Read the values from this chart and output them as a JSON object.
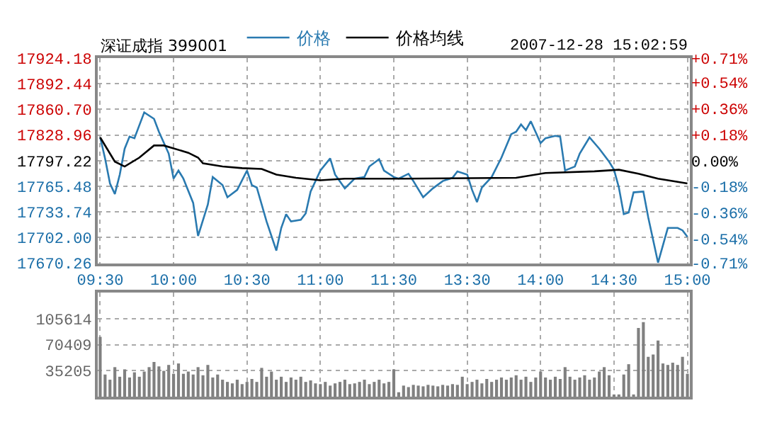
{
  "chart_data": [
    {
      "type": "line",
      "title": "深证成指 399001",
      "annotations": [
        "2007-12-28 15:02:59"
      ],
      "categories": [
        "09:30",
        null,
        null,
        null,
        null,
        null,
        null,
        null,
        null,
        null,
        null,
        null,
        null,
        null,
        null,
        "10:00",
        null,
        null,
        null,
        null,
        null,
        null,
        null,
        null,
        null,
        null,
        null,
        null,
        null,
        null,
        "10:30",
        null,
        null,
        null,
        null,
        null,
        null,
        null,
        null,
        null,
        null,
        null,
        null,
        null,
        null,
        "11:00",
        null,
        null,
        null,
        null,
        null,
        null,
        null,
        null,
        null,
        null,
        null,
        null,
        null,
        null,
        "11:30",
        null,
        null,
        null,
        null,
        null,
        null,
        null,
        null,
        null,
        null,
        null,
        null,
        null,
        null,
        "13:30",
        null,
        null,
        null,
        null,
        null,
        null,
        null,
        null,
        null,
        null,
        null,
        null,
        null,
        null,
        "14:00",
        null,
        null,
        null,
        null,
        null,
        null,
        null,
        null,
        null,
        null,
        null,
        null,
        null,
        null,
        "14:30",
        null,
        null,
        null,
        null,
        null,
        null,
        null,
        null,
        null,
        null,
        null,
        null,
        null,
        null,
        "15:00"
      ],
      "ylim": [
        17670.26,
        17924.18
      ],
      "yticks": [
        {
          "value": 17670.26,
          "label": "17670.26"
        },
        {
          "value": 17702,
          "label": "17702.00"
        },
        {
          "value": 17733.74,
          "label": "17733.74"
        },
        {
          "value": 17765.48,
          "label": "17765.48"
        },
        {
          "value": 17797.22,
          "label": "17797.22"
        },
        {
          "value": 17828.96,
          "label": "17828.96"
        },
        {
          "value": 17860.7,
          "label": "17860.70"
        },
        {
          "value": 17892.44,
          "label": "17892.44"
        },
        {
          "value": 17924.18,
          "label": "17924.18"
        }
      ],
      "y2lim": [
        -0.71,
        0.71
      ],
      "y2ticks": [
        {
          "value": -0.71,
          "label": "-0.71%"
        },
        {
          "value": -0.54,
          "label": "-0.54%"
        },
        {
          "value": -0.36,
          "label": "-0.36%"
        },
        {
          "value": -0.18,
          "label": "-0.18%"
        },
        {
          "value": 0,
          "label": "0.00%"
        },
        {
          "value": 0.18,
          "label": "+0.18%"
        },
        {
          "value": 0.36,
          "label": "+0.36%"
        },
        {
          "value": 0.54,
          "label": "+0.54%"
        },
        {
          "value": 0.71,
          "label": "+0.71%"
        }
      ],
      "grid": true,
      "legend": "top",
      "marker": "none",
      "line_style": "solid",
      "series": [
        {
          "name": "价格",
          "color": "#2a7ab0",
          "values": [
            17826,
            17800,
            17769,
            17756,
            17780,
            17812,
            17827,
            17825,
            17841,
            17857,
            null,
            17849,
            17833,
            null,
            17806,
            17775,
            17785,
            17775,
            null,
            17745,
            17704,
            null,
            17743,
            17777,
            null,
            17767,
            17752,
            null,
            17761,
            null,
            17785,
            17767,
            17764,
            null,
            17722,
            null,
            17686,
            17714,
            17731,
            17722,
            null,
            17724,
            17732,
            17759,
            null,
            17785,
            null,
            17800,
            17780,
            null,
            17763,
            null,
            17775,
            null,
            17777,
            17790,
            null,
            17799,
            17785,
            null,
            17777,
            17775,
            null,
            17781,
            17772,
            null,
            17752,
            null,
            17763,
            null,
            17772,
            null,
            17776,
            17784,
            null,
            17780,
            17761,
            17746,
            17764,
            null,
            17777,
            null,
            17801,
            null,
            17830,
            17833,
            17842,
            17835,
            17846,
            null,
            17819,
            17825,
            null,
            17828,
            17827,
            17785,
            null,
            17790,
            17806,
            null,
            17826,
            null,
            17812,
            null,
            17796,
            17786,
            17764,
            17731,
            17733,
            17758,
            null,
            17759,
            17727,
            null,
            17671,
            null,
            17714,
            null,
            17714,
            17711,
            17703
          ]
        },
        {
          "name": "价格均线",
          "color": "#000000",
          "values": [
            17826,
            null,
            null,
            17796,
            null,
            17790,
            null,
            null,
            17801,
            null,
            null,
            17816,
            null,
            17816,
            null,
            null,
            null,
            null,
            17807,
            null,
            17801,
            17794,
            null,
            null,
            null,
            17790,
            null,
            null,
            null,
            17788,
            null,
            null,
            null,
            17787,
            null,
            null,
            17780,
            null,
            null,
            null,
            17776,
            null,
            null,
            null,
            null,
            17773,
            null,
            null,
            null,
            null,
            17775,
            null,
            null,
            null,
            null,
            null,
            null,
            null,
            null,
            null,
            null,
            null,
            17775,
            null,
            null,
            null,
            null,
            null,
            null,
            null,
            null,
            null,
            null,
            null,
            null,
            null,
            null,
            null,
            null,
            null,
            null,
            null,
            null,
            null,
            null,
            17776,
            null,
            null,
            null,
            null,
            null,
            17782,
            null,
            null,
            null,
            null,
            null,
            null,
            null,
            null,
            null,
            17784,
            null,
            null,
            null,
            null,
            17786,
            null,
            null,
            null,
            17781,
            null,
            null,
            null,
            17775,
            null,
            null,
            null,
            null,
            null,
            17769
          ]
        }
      ]
    },
    {
      "type": "bar",
      "grid": true,
      "categories": [
        null,
        null,
        null,
        null,
        null,
        null,
        null,
        null,
        null,
        null,
        null,
        null,
        null,
        null,
        null,
        null,
        null,
        null,
        null,
        null,
        null,
        null,
        null,
        null,
        null,
        null,
        null,
        null,
        null,
        null,
        null,
        null,
        null,
        null,
        null,
        null,
        null,
        null,
        null,
        null,
        null,
        null,
        null,
        null,
        null,
        null,
        null,
        null,
        null,
        null,
        null,
        null,
        null,
        null,
        null,
        null,
        null,
        null,
        null,
        null,
        null,
        null,
        null,
        null,
        null,
        null,
        null,
        null,
        null,
        null,
        null,
        null,
        null,
        null,
        null,
        null,
        null,
        null,
        null,
        null,
        null,
        null,
        null,
        null,
        null,
        null,
        null,
        null,
        null,
        null,
        null,
        null,
        null,
        null,
        null,
        null,
        null,
        null,
        null,
        null,
        null,
        null,
        null,
        null,
        null,
        null,
        null,
        null,
        null,
        null,
        null,
        null,
        null,
        null,
        null,
        null,
        null,
        null,
        null,
        null,
        null
      ],
      "ylim": [
        0,
        140818
      ],
      "yticks": [
        35205,
        70409,
        105614
      ],
      "series": [
        {
          "color": "#808080",
          "values": [
            81000,
            30000,
            23000,
            40000,
            27000,
            37000,
            26000,
            33000,
            27000,
            34000,
            40000,
            47000,
            41000,
            35000,
            43000,
            31000,
            45000,
            31000,
            34000,
            30000,
            40000,
            29000,
            43000,
            26000,
            30000,
            23000,
            20000,
            18000,
            23000,
            17000,
            20000,
            24000,
            20000,
            39000,
            27000,
            34000,
            23000,
            27000,
            20000,
            26000,
            23000,
            27000,
            20000,
            22000,
            18000,
            17000,
            20000,
            15000,
            18000,
            20000,
            23000,
            17000,
            18000,
            20000,
            23000,
            17000,
            20000,
            23000,
            18000,
            20000,
            37000,
            6000,
            15000,
            13000,
            16000,
            15000,
            14000,
            16000,
            15000,
            14000,
            16000,
            15000,
            17000,
            16000,
            27000,
            17000,
            20000,
            23000,
            18000,
            24000,
            20000,
            23000,
            26000,
            23000,
            26000,
            29000,
            23000,
            27000,
            20000,
            26000,
            34000,
            26000,
            23000,
            27000,
            24000,
            40000,
            27000,
            23000,
            26000,
            29000,
            23000,
            26000,
            34000,
            40000,
            29000,
            3000,
            3000,
            30000,
            44000,
            3000,
            93000,
            101000,
            54000,
            57000,
            76000,
            45000,
            43000,
            46000,
            43000,
            54000,
            31000
          ]
        }
      ]
    }
  ]
}
